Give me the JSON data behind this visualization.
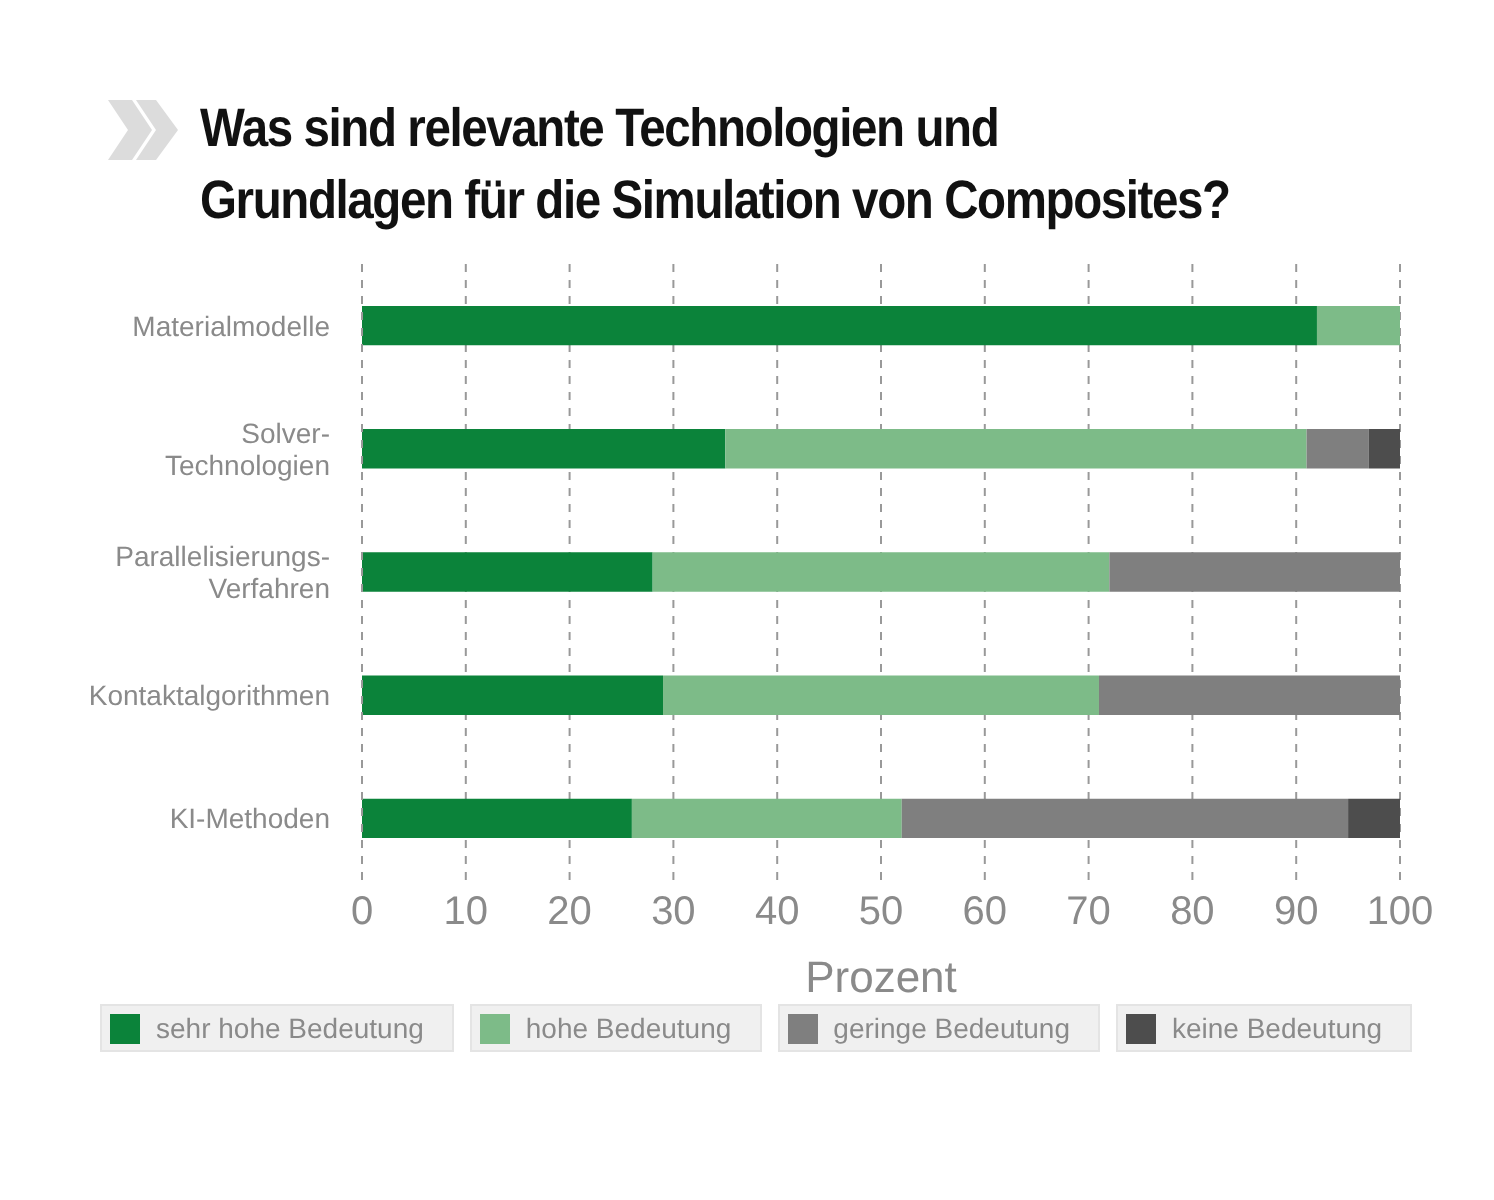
{
  "chart_data": {
    "type": "bar",
    "orientation": "horizontal",
    "stacked": true,
    "title": "Was sind relevante Technologien und Grundlagen für die Simulation von Composites?",
    "xlabel": "Prozent",
    "categories": [
      "Materialmodelle",
      "Solver-\nTechnologien",
      "Parallelisierungs-\nVerfahren",
      "Kontaktalgorithmen",
      "KI-Methoden"
    ],
    "series": [
      {
        "name": "sehr hohe Bedeutung",
        "color": "#0b833a",
        "values": [
          92,
          35,
          28,
          29,
          26
        ]
      },
      {
        "name": "hohe Bedeutung",
        "color": "#7dbb88",
        "values": [
          8,
          56,
          44,
          42,
          26
        ]
      },
      {
        "name": "geringe Bedeutung",
        "color": "#7f7f7f",
        "values": [
          0,
          6,
          28,
          29,
          43
        ]
      },
      {
        "name": "keine Bedeutung",
        "color": "#4d4d4d",
        "values": [
          0,
          3,
          0,
          0,
          5
        ]
      }
    ],
    "xlim": [
      0,
      100
    ],
    "xticks": [
      0,
      10,
      20,
      30,
      40,
      50,
      60,
      70,
      80,
      90,
      100
    ],
    "grid": "x",
    "legend": "bottom"
  }
}
